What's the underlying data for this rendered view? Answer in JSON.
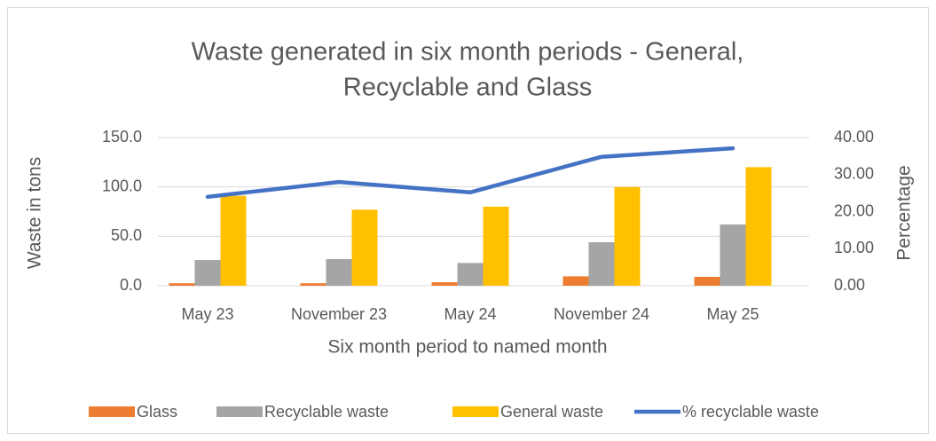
{
  "chart_data": {
    "type": "bar",
    "title": [
      "Waste generated in six month periods - General,",
      "Recyclable and Glass"
    ],
    "xlabel": "Six month period to named month",
    "ylabel": "Waste in tons",
    "y2label": "Percentage",
    "categories": [
      "May 23",
      "November 23",
      "May 24",
      "November 24",
      "May 25"
    ],
    "series": [
      {
        "name": "Glass",
        "color": "#ed7d31",
        "type": "bar",
        "values": [
          2.5,
          2.5,
          3.5,
          9.5,
          9
        ]
      },
      {
        "name": "Recyclable waste",
        "color": "#a5a5a5",
        "type": "bar",
        "values": [
          26,
          27,
          23,
          44,
          62
        ]
      },
      {
        "name": "General waste",
        "color": "#ffc000",
        "type": "bar",
        "values": [
          91,
          77,
          80,
          100,
          120
        ]
      },
      {
        "name": "% recyclable waste",
        "color": "#4472c4",
        "type": "line",
        "axis": "y2",
        "values": [
          24,
          28,
          25.2,
          34.8,
          37.1
        ]
      }
    ],
    "ylim": [
      0,
      150
    ],
    "yticks": [
      {
        "value": 0,
        "label": "0.0"
      },
      {
        "value": 50,
        "label": "50.0"
      },
      {
        "value": 100,
        "label": "100.0"
      },
      {
        "value": 150,
        "label": "150.0"
      }
    ],
    "y2lim": [
      0,
      40
    ],
    "y2ticks": [
      {
        "value": 0,
        "label": "0.00"
      },
      {
        "value": 10,
        "label": "10.00"
      },
      {
        "value": 20,
        "label": "20.00"
      },
      {
        "value": 30,
        "label": "30.00"
      },
      {
        "value": 40,
        "label": "40.00"
      }
    ],
    "grid": true,
    "legend": "bottom"
  }
}
